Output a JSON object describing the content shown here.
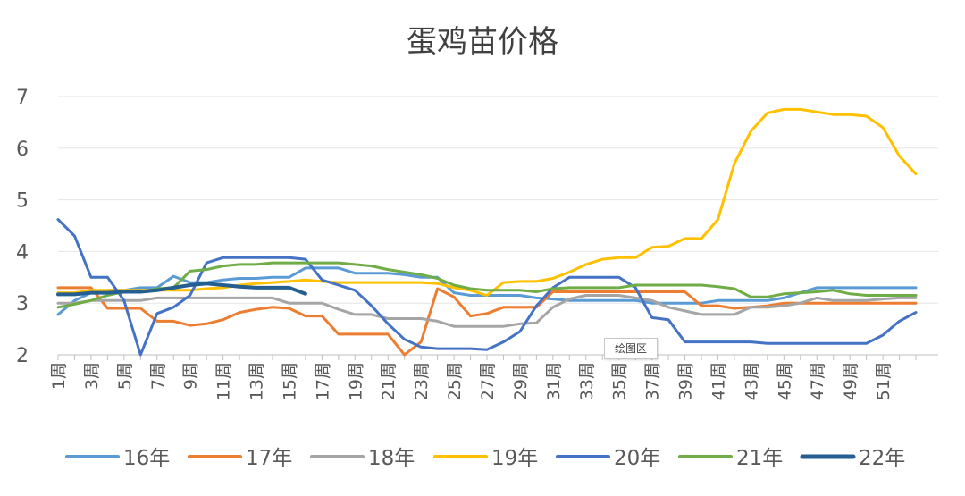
{
  "chart_data": {
    "type": "line",
    "title": "蛋鸡苗价格",
    "xlabel": "",
    "ylabel": "",
    "ylim": [
      2,
      7
    ],
    "yticks": [
      2,
      3,
      4,
      5,
      6,
      7
    ],
    "grid": true,
    "legend_position": "bottom",
    "x_count": 53,
    "x_tick_labels": [
      "1周",
      "3周",
      "5周",
      "7周",
      "9周",
      "11周",
      "13周",
      "15周",
      "17周",
      "19周",
      "21周",
      "23周",
      "25周",
      "27周",
      "29周",
      "31周",
      "33周",
      "35周",
      "37周",
      "39周",
      "41周",
      "43周",
      "45周",
      "47周",
      "49周",
      "51周"
    ],
    "x_tick_weeks": [
      1,
      3,
      5,
      7,
      9,
      11,
      13,
      15,
      17,
      19,
      21,
      23,
      25,
      27,
      29,
      31,
      33,
      35,
      37,
      39,
      41,
      43,
      45,
      47,
      49,
      51
    ],
    "plot_area_label": "绘图区",
    "series": [
      {
        "name": "16年",
        "color": "#5B9BD5",
        "width": 3,
        "values": [
          2.78,
          3.05,
          3.2,
          3.25,
          3.25,
          3.3,
          3.3,
          3.52,
          3.4,
          3.4,
          3.45,
          3.48,
          3.48,
          3.5,
          3.5,
          3.68,
          3.68,
          3.68,
          3.58,
          3.58,
          3.58,
          3.55,
          3.5,
          3.5,
          3.2,
          3.15,
          3.15,
          3.15,
          3.15,
          3.1,
          3.08,
          3.05,
          3.05,
          3.05,
          3.05,
          3.05,
          3.0,
          3.0,
          3.0,
          3.0,
          3.05,
          3.05,
          3.05,
          3.05,
          3.1,
          3.2,
          3.3,
          3.3,
          3.3,
          3.3,
          3.3,
          3.3,
          3.3
        ]
      },
      {
        "name": "17年",
        "color": "#ED7D31",
        "width": 3,
        "values": [
          3.3,
          3.3,
          3.3,
          2.9,
          2.9,
          2.9,
          2.65,
          2.65,
          2.57,
          2.6,
          2.68,
          2.82,
          2.88,
          2.92,
          2.9,
          2.75,
          2.75,
          2.4,
          2.4,
          2.4,
          2.4,
          2.0,
          2.25,
          3.28,
          3.12,
          2.75,
          2.8,
          2.92,
          2.92,
          2.92,
          3.22,
          3.22,
          3.22,
          3.22,
          3.22,
          3.22,
          3.22,
          3.22,
          3.22,
          2.95,
          2.95,
          2.9,
          2.92,
          2.95,
          3.0,
          3.0,
          3.0,
          3.0,
          3.0,
          3.0,
          3.0,
          3.0,
          3.0
        ]
      },
      {
        "name": "18年",
        "color": "#A5A5A5",
        "width": 3,
        "values": [
          3.0,
          3.0,
          3.05,
          3.05,
          3.05,
          3.05,
          3.1,
          3.1,
          3.1,
          3.1,
          3.1,
          3.1,
          3.1,
          3.1,
          3.0,
          3.0,
          3.0,
          2.88,
          2.78,
          2.78,
          2.7,
          2.7,
          2.7,
          2.65,
          2.55,
          2.55,
          2.55,
          2.55,
          2.6,
          2.62,
          2.92,
          3.08,
          3.15,
          3.15,
          3.15,
          3.1,
          3.05,
          2.92,
          2.85,
          2.78,
          2.78,
          2.78,
          2.92,
          2.92,
          2.95,
          3.0,
          3.1,
          3.05,
          3.05,
          3.05,
          3.08,
          3.1,
          3.1
        ]
      },
      {
        "name": "19年",
        "color": "#FFC000",
        "width": 3,
        "values": [
          3.2,
          3.2,
          3.25,
          3.25,
          3.25,
          3.25,
          3.25,
          3.25,
          3.25,
          3.28,
          3.3,
          3.35,
          3.38,
          3.4,
          3.42,
          3.45,
          3.42,
          3.4,
          3.4,
          3.4,
          3.4,
          3.4,
          3.4,
          3.38,
          3.3,
          3.25,
          3.15,
          3.4,
          3.42,
          3.42,
          3.48,
          3.6,
          3.75,
          3.85,
          3.88,
          3.88,
          4.08,
          4.1,
          4.25,
          4.25,
          4.62,
          5.7,
          6.33,
          6.68,
          6.75,
          6.75,
          6.7,
          6.65,
          6.65,
          6.62,
          6.4,
          5.85,
          5.5
        ]
      },
      {
        "name": "20年",
        "color": "#4472C4",
        "width": 3,
        "values": [
          4.62,
          4.3,
          3.5,
          3.5,
          3.05,
          2.0,
          2.8,
          2.92,
          3.15,
          3.78,
          3.88,
          3.88,
          3.88,
          3.88,
          3.88,
          3.85,
          3.45,
          3.35,
          3.25,
          2.95,
          2.6,
          2.3,
          2.15,
          2.12,
          2.12,
          2.12,
          2.1,
          2.25,
          2.45,
          2.95,
          3.3,
          3.5,
          3.5,
          3.5,
          3.5,
          3.3,
          2.72,
          2.68,
          2.25,
          2.25,
          2.25,
          2.25,
          2.25,
          2.22,
          2.22,
          2.22,
          2.22,
          2.22,
          2.22,
          2.22,
          2.38,
          2.65,
          2.82
        ]
      },
      {
        "name": "21年",
        "color": "#70AD47",
        "width": 3,
        "values": [
          2.92,
          2.98,
          3.05,
          3.15,
          3.22,
          3.22,
          3.28,
          3.3,
          3.62,
          3.65,
          3.72,
          3.75,
          3.75,
          3.78,
          3.78,
          3.78,
          3.78,
          3.78,
          3.75,
          3.72,
          3.65,
          3.6,
          3.55,
          3.48,
          3.35,
          3.28,
          3.25,
          3.25,
          3.25,
          3.22,
          3.28,
          3.3,
          3.3,
          3.3,
          3.3,
          3.35,
          3.35,
          3.35,
          3.35,
          3.35,
          3.32,
          3.28,
          3.12,
          3.12,
          3.18,
          3.2,
          3.22,
          3.25,
          3.18,
          3.15,
          3.15,
          3.15,
          3.15
        ]
      },
      {
        "name": "22年",
        "color": "#255E91",
        "width": 4,
        "values": [
          3.17,
          3.17,
          3.2,
          3.2,
          3.22,
          3.22,
          3.25,
          3.3,
          3.35,
          3.38,
          3.35,
          3.32,
          3.3,
          3.3,
          3.3,
          3.18
        ]
      }
    ]
  }
}
